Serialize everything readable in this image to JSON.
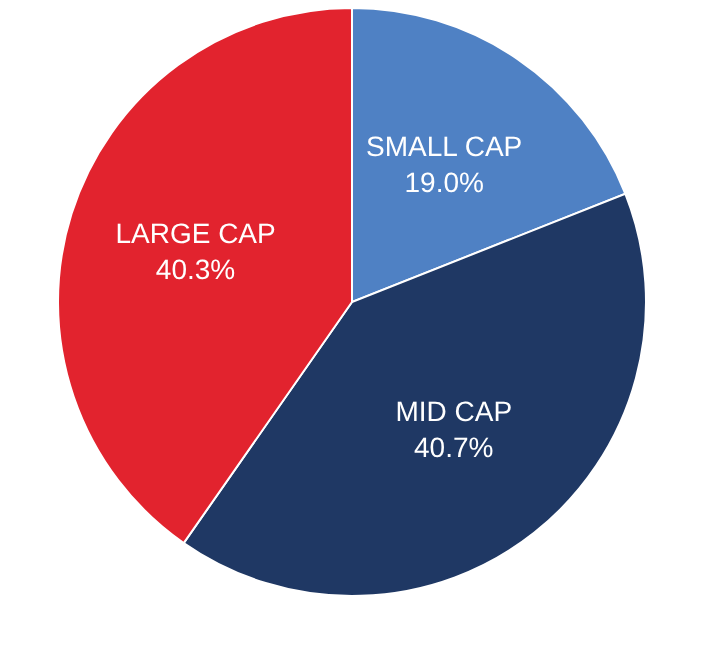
{
  "chart_data": {
    "type": "pie",
    "categories": [
      "SMALL CAP",
      "MID CAP",
      "LARGE CAP"
    ],
    "values": [
      19.0,
      40.7,
      40.3
    ],
    "value_labels": [
      "19.0%",
      "40.7%",
      "40.3%"
    ],
    "colors": [
      "#4f81c4",
      "#1f3864",
      "#e2232e"
    ]
  }
}
